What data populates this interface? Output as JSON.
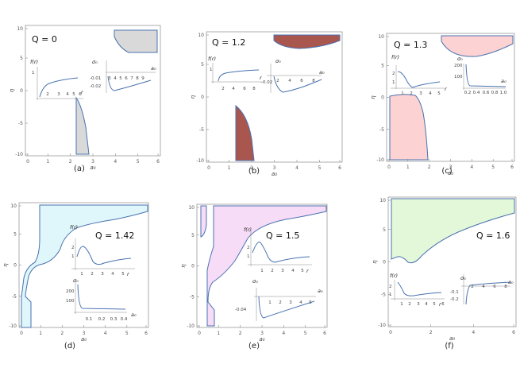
{
  "figure": {
    "panels": [
      {
        "id": "a",
        "sub_label": "(a)",
        "q_label": "Q = 0",
        "fill": "#d9d9d9",
        "ytick_labels": [
          "10",
          "5",
          "0",
          "-5",
          "-10"
        ],
        "xtick_labels": [
          "0",
          "1",
          "2",
          "3",
          "4",
          "5",
          "6"
        ],
        "y_axis_label": "η",
        "x_axis_label": "a₀",
        "inset_f": {
          "label": "f(r)",
          "r_label": "r",
          "yticks": [
            "1"
          ],
          "xticks": [
            "2",
            "3",
            "4",
            "5",
            "6"
          ]
        },
        "inset_sigma": {
          "label": "σ₀",
          "a_label": "a₀",
          "yticks": [
            "-0.01",
            "-0.02"
          ],
          "xticks": [
            "3",
            "4",
            "5",
            "6",
            "7",
            "8",
            "9"
          ]
        }
      },
      {
        "id": "b",
        "sub_label": "(b)",
        "q_label": "Q = 1.2",
        "fill": "#a9564f",
        "ytick_labels": [
          "10",
          "5",
          "0",
          "-5",
          "-10"
        ],
        "xtick_labels": [
          "0",
          "1",
          "2",
          "3",
          "4",
          "5",
          "6"
        ],
        "y_axis_label": "η",
        "x_axis_label": "a₀",
        "inset_f": {
          "label": "f(r)",
          "r_label": "r",
          "yticks": [
            "1"
          ],
          "xticks": [
            "2",
            "4",
            "6",
            "8"
          ]
        },
        "inset_sigma": {
          "label": "σ₀",
          "a_label": "a₀",
          "yticks": [
            "-0.02"
          ],
          "xticks": [
            "2",
            "4",
            "6",
            "8"
          ]
        }
      },
      {
        "id": "c",
        "sub_label": "(c)",
        "q_label": "Q = 1.3",
        "fill": "#fcd2d2",
        "ytick_labels": [
          "10",
          "5",
          "0",
          "-5",
          "-10"
        ],
        "xtick_labels": [
          "0",
          "1",
          "2",
          "3",
          "4",
          "5",
          "6"
        ],
        "y_axis_label": "η",
        "x_axis_label": "a₀",
        "inset_f": {
          "label": "f(r)",
          "r_label": "r",
          "yticks": [
            "2",
            "1"
          ],
          "xticks": [
            "1",
            "2",
            "3",
            "4",
            "5"
          ]
        },
        "inset_sigma": {
          "label": "σ₀",
          "a_label": "a₀",
          "yticks": [
            "200",
            "100"
          ],
          "xticks": [
            "0.2",
            "0.4",
            "0.6",
            "0.8",
            "1.0"
          ]
        }
      },
      {
        "id": "d",
        "sub_label": "(d)",
        "q_label": "Q = 1.42",
        "fill": "#dff7fa",
        "ytick_labels": [
          "10",
          "5",
          "0",
          "-5",
          "-10"
        ],
        "xtick_labels": [
          "0",
          "1",
          "2",
          "3",
          "4",
          "5",
          "6"
        ],
        "y_axis_label": "η",
        "x_axis_label": "a₀",
        "inset_f": {
          "label": "f(r)",
          "r_label": "r",
          "yticks": [
            "2",
            "1"
          ],
          "xticks": [
            "1",
            "2",
            "3",
            "4",
            "5"
          ]
        },
        "inset_sigma": {
          "label": "σ₀",
          "a_label": "a₀",
          "yticks": [
            "200",
            "100"
          ],
          "xticks": [
            "0.1",
            "0.2",
            "0.3",
            "0.4"
          ]
        }
      },
      {
        "id": "e",
        "sub_label": "(e)",
        "q_label": "Q = 1.5",
        "fill": "#f7dcf8",
        "ytick_labels": [
          "10",
          "5",
          "0",
          "-5",
          "-10"
        ],
        "xtick_labels": [
          "0",
          "1",
          "2",
          "3",
          "4",
          "5",
          "6"
        ],
        "y_axis_label": "η",
        "x_axis_label": "a₀",
        "inset_f": {
          "label": "f(r)",
          "r_label": "r",
          "yticks": [
            "2",
            "1"
          ],
          "xticks": [
            "1",
            "2",
            "3",
            "4",
            "5"
          ]
        },
        "inset_sigma": {
          "label": "σ₀",
          "a_label": "a₀",
          "yticks": [
            "-0.04"
          ],
          "xticks": [
            "1",
            "2",
            "3",
            "4",
            "5"
          ]
        }
      },
      {
        "id": "f",
        "sub_label": "(f)",
        "q_label": "Q = 1.6",
        "fill": "#e3f8d9",
        "ytick_labels": [
          "10",
          "5",
          "0",
          "-5",
          "-10"
        ],
        "xtick_labels": [
          "0",
          "2",
          "4",
          "6"
        ],
        "y_axis_label": "η",
        "x_axis_label": "a₀",
        "inset_f": {
          "label": "f(r)",
          "r_label": "r",
          "yticks": [
            "2",
            "1"
          ],
          "xticks": [
            "1",
            "2",
            "3",
            "4",
            "5",
            "6"
          ]
        },
        "inset_sigma": {
          "label": "σ₀",
          "a_label": "a₀",
          "yticks": [
            "-0.1",
            "-0.2"
          ],
          "xticks": [
            "2",
            "4",
            "6",
            "8"
          ]
        }
      }
    ],
    "colors": {
      "curve": "#4a72b0",
      "frame": "#6f6f6f"
    }
  }
}
